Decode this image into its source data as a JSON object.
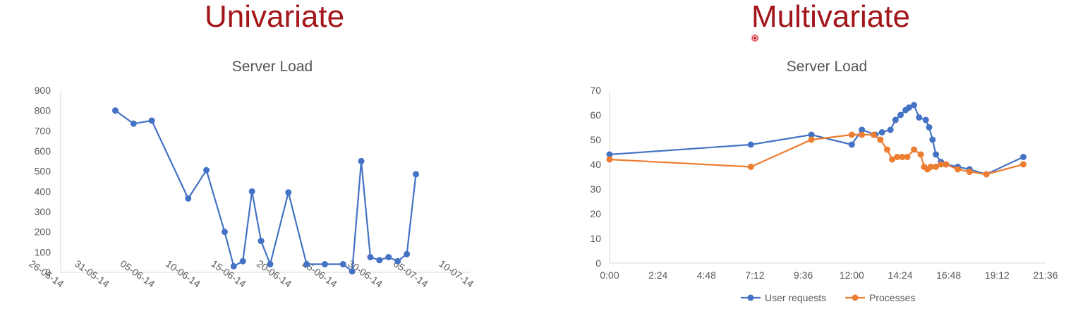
{
  "headings": {
    "left": "Univariate",
    "right": "Multivariate"
  },
  "chart_data": [
    {
      "type": "line",
      "title": "Server Load",
      "x_type": "date",
      "xlim": [
        "2014-05-26",
        "2014-07-10"
      ],
      "ylim": [
        0,
        900
      ],
      "x_ticks": [
        {
          "value": "2014-05-26",
          "label": "26-05-14"
        },
        {
          "value": "2014-05-31",
          "label": "31-05-14"
        },
        {
          "value": "2014-06-05",
          "label": "05-06-14"
        },
        {
          "value": "2014-06-10",
          "label": "10-06-14"
        },
        {
          "value": "2014-06-15",
          "label": "15-06-14"
        },
        {
          "value": "2014-06-20",
          "label": "20-06-14"
        },
        {
          "value": "2014-06-25",
          "label": "25-06-14"
        },
        {
          "value": "2014-06-30",
          "label": "30-06-14"
        },
        {
          "value": "2014-07-05",
          "label": "05-07-14"
        },
        {
          "value": "2014-07-10",
          "label": "10-07-14"
        }
      ],
      "y_ticks": [
        0,
        100,
        200,
        300,
        400,
        500,
        600,
        700,
        800,
        900
      ],
      "grid": false,
      "legend": "none",
      "color": "#4472c4",
      "series": [
        {
          "x": [
            "2014-06-01",
            "2014-06-03",
            "2014-06-05",
            "2014-06-09",
            "2014-06-11",
            "2014-06-13",
            "2014-06-14",
            "2014-06-15",
            "2014-06-16",
            "2014-06-17",
            "2014-06-18",
            "2014-06-20",
            "2014-06-22",
            "2014-06-24",
            "2014-06-26",
            "2014-06-27",
            "2014-06-28",
            "2014-06-29",
            "2014-06-30",
            "2014-07-01",
            "2014-07-02",
            "2014-07-03",
            "2014-07-04"
          ],
          "y": [
            800,
            735,
            750,
            365,
            505,
            200,
            30,
            55,
            400,
            155,
            40,
            395,
            40,
            40,
            40,
            5,
            550,
            75,
            60,
            75,
            55,
            90,
            485
          ]
        }
      ]
    },
    {
      "type": "line",
      "title": "Server Load",
      "x_type": "time",
      "xlim": [
        "0:00",
        "21:36"
      ],
      "ylim": [
        0,
        70
      ],
      "x_ticks": [
        "0:00",
        "2:24",
        "4:48",
        "7:12",
        "9:36",
        "12:00",
        "14:24",
        "16:48",
        "19:12",
        "21:36"
      ],
      "y_ticks": [
        0,
        10,
        20,
        30,
        40,
        50,
        60,
        70
      ],
      "grid": false,
      "legend": "bottom",
      "series": [
        {
          "name": "User requests",
          "color": "#4472c4",
          "x": [
            "0:00",
            "7:00",
            "10:00",
            "12:00",
            "12:30",
            "13:10",
            "13:30",
            "13:55",
            "14:10",
            "14:25",
            "14:40",
            "14:50",
            "15:05",
            "15:20",
            "15:40",
            "15:50",
            "16:00",
            "16:10",
            "16:25",
            "16:40",
            "17:15",
            "17:50",
            "18:40",
            "20:30"
          ],
          "y": [
            44,
            48,
            52,
            48,
            54,
            52,
            53,
            54,
            58,
            60,
            62,
            63,
            64,
            59,
            58,
            55,
            50,
            44,
            41,
            40,
            39,
            38,
            36,
            43
          ]
        },
        {
          "name": "Processes",
          "color": "#ed7d31",
          "x": [
            "0:00",
            "7:00",
            "10:00",
            "12:00",
            "12:30",
            "13:05",
            "13:25",
            "13:45",
            "14:00",
            "14:15",
            "14:30",
            "14:45",
            "15:05",
            "15:25",
            "15:35",
            "15:45",
            "15:55",
            "16:10",
            "16:25",
            "16:40",
            "17:15",
            "17:50",
            "18:40",
            "20:30"
          ],
          "y": [
            42,
            39,
            50,
            52,
            52,
            52,
            50,
            46,
            42,
            43,
            43,
            43,
            46,
            44,
            39,
            38,
            39,
            39,
            40,
            40,
            38,
            37,
            36,
            40
          ]
        }
      ]
    }
  ]
}
